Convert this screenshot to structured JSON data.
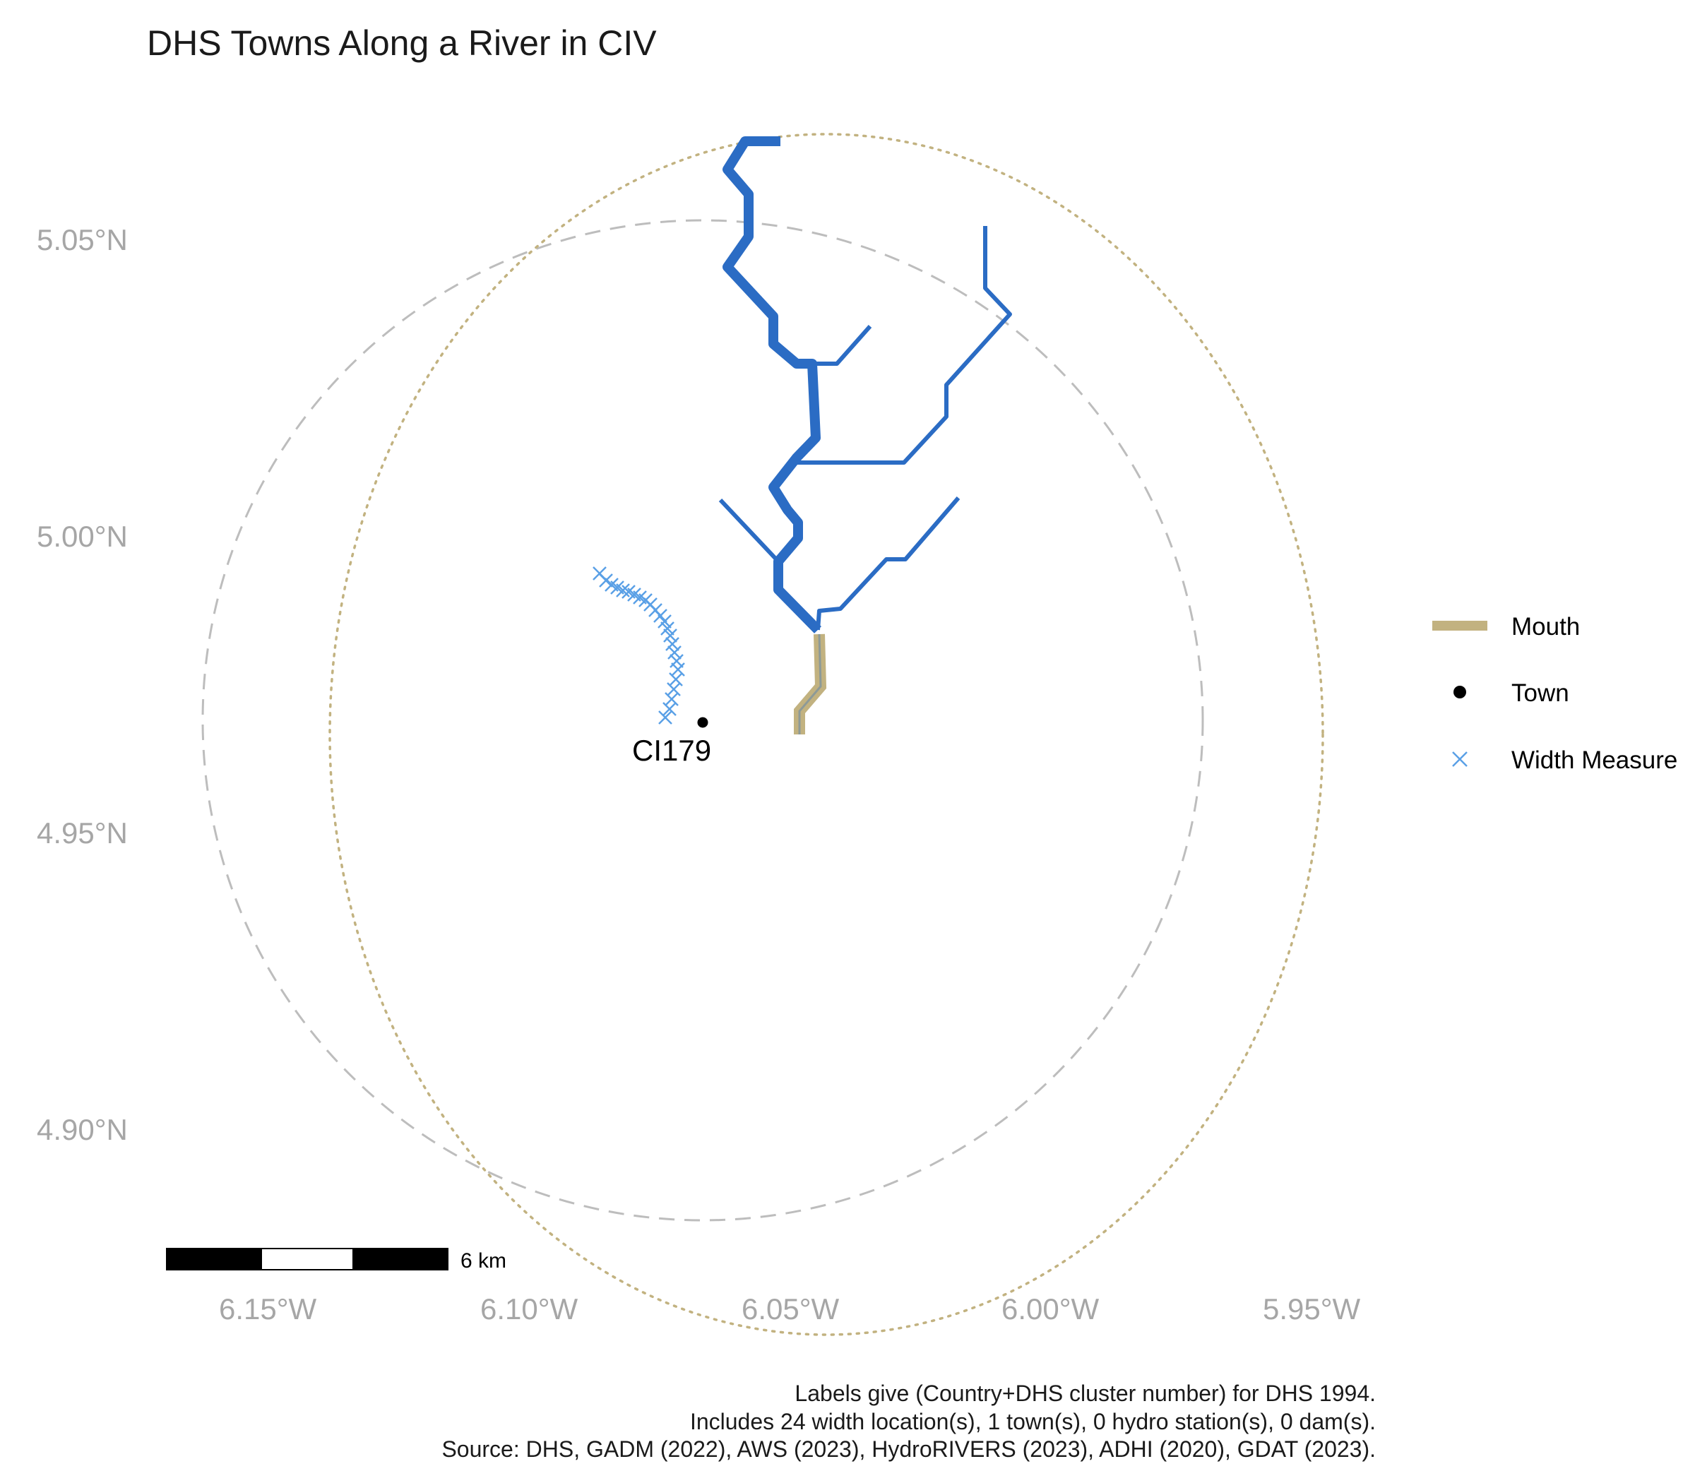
{
  "title": "DHS Towns Along a River in CIV",
  "axes": {
    "x_ticks": [
      "6.15°W",
      "6.10°W",
      "6.05°W",
      "6.00°W",
      "5.95°W"
    ],
    "y_ticks": [
      "5.05°N",
      "5.00°N",
      "4.95°N",
      "4.90°N"
    ]
  },
  "colors": {
    "river": "#2b6cc4",
    "mouth": "#c2b280",
    "town": "#000000",
    "width_measure": "#5aa0e6",
    "buffer_dashed": "#bdbdbd",
    "buffer_dotted": "#c2b280"
  },
  "town": {
    "label": "CI179",
    "lon": -6.068,
    "lat": 4.968
  },
  "legend": {
    "mouth_label": "Mouth",
    "town_label": "Town",
    "width_label": "Width Measure"
  },
  "scale_bar": {
    "label": "6 km"
  },
  "caption": {
    "line1": "Labels give (Country+DHS cluster number) for DHS 1994.",
    "line2": "Includes 24 width location(s), 1 town(s), 0 hydro station(s), 0 dam(s).",
    "line3": "Source: DHS, GADM (2022), AWS (2023), HydroRIVERS (2023), ADHI (2020), GDAT (2023)."
  }
}
